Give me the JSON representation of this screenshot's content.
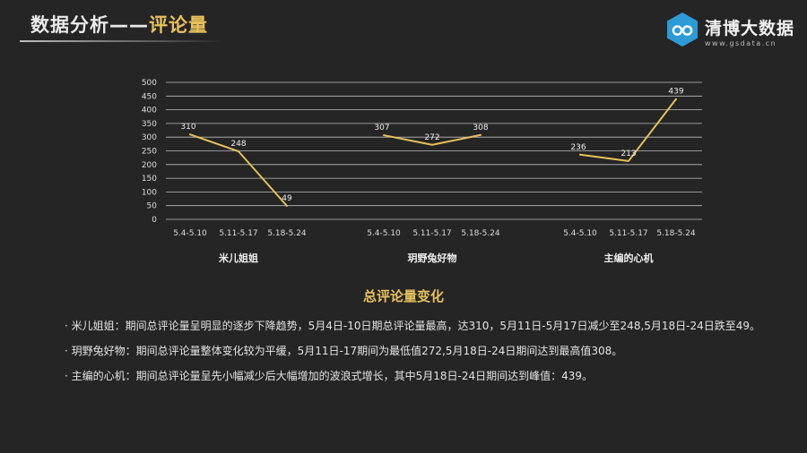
{
  "header": {
    "title_prefix": "数据分析——",
    "title_highlight": "评论量"
  },
  "logo": {
    "name": "清博大数据",
    "url": "www.gsdata.cn"
  },
  "colors": {
    "line": "#e7c25a",
    "accent": "#e7c25a",
    "background": "#252525",
    "grid": "#bdbdbd"
  },
  "chart_data": {
    "type": "line",
    "ylim": [
      0,
      500
    ],
    "yticks": [
      0,
      50,
      100,
      150,
      200,
      250,
      300,
      350,
      400,
      450,
      500
    ],
    "grid": true,
    "groups": [
      {
        "name": "米儿姐姐",
        "categories": [
          "5.4-5.10",
          "5.11-5.17",
          "5.18-5.24"
        ],
        "values": [
          310,
          248,
          49
        ]
      },
      {
        "name": "玥野兔好物",
        "categories": [
          "5.4-5.10",
          "5.11-5.17",
          "5.18-5.24"
        ],
        "values": [
          307,
          272,
          308
        ]
      },
      {
        "name": "主编的心机",
        "categories": [
          "5.4-5.10",
          "5.11-5.17",
          "5.18-5.24"
        ],
        "values": [
          236,
          213,
          439
        ]
      }
    ]
  },
  "section": {
    "title": "总评论量变化",
    "notes": [
      "· 米儿姐姐：期间总评论量呈明显的逐步下降趋势，5月4日-10日期总评论量最高，达310，5月11日-5月17日减少至248,5月18日-24日跌至49。",
      "· 玥野兔好物：期间总评论量整体变化较为平缓，5月11日-17期间为最低值272,5月18日-24日期间达到最高值308。",
      "· 主编的心机：期间总评论量呈先小幅减少后大幅增加的波浪式增长，其中5月18日-24日期间达到峰值：439。"
    ]
  }
}
